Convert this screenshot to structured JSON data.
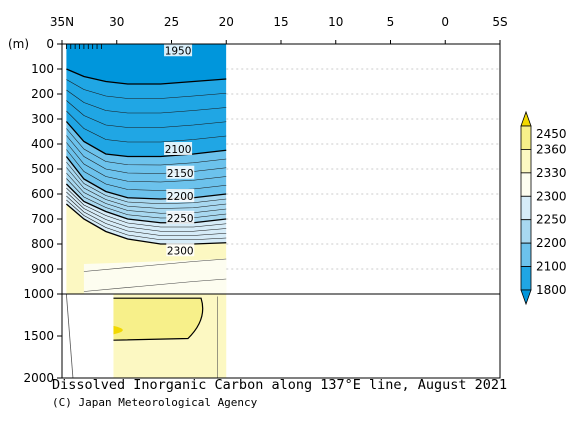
{
  "chart_data": {
    "type": "heatmap",
    "title": "Dissolved Inorganic Carbon along 137°E line, August 2021",
    "credit": "(C) Japan Meteorological Agency",
    "y_unit_label": "(m)",
    "x_ticks": [
      {
        "value": 35,
        "label": "35N"
      },
      {
        "value": 30,
        "label": "30"
      },
      {
        "value": 25,
        "label": "25"
      },
      {
        "value": 20,
        "label": "20"
      },
      {
        "value": 15,
        "label": "15"
      },
      {
        "value": 10,
        "label": "10"
      },
      {
        "value": 5,
        "label": "5"
      },
      {
        "value": 0,
        "label": "0"
      },
      {
        "value": -5,
        "label": "5S"
      }
    ],
    "x_range": [
      35,
      -5
    ],
    "y_ticks_upper": [
      0,
      100,
      200,
      300,
      400,
      500,
      600,
      700,
      800,
      900,
      1000
    ],
    "y_ticks_lower": [
      1500,
      2000
    ],
    "y_range_upper": [
      0,
      1000
    ],
    "y_range_lower": [
      1000,
      2000
    ],
    "colorbar": {
      "labels": [
        "2450",
        "2360",
        "2330",
        "2300",
        "2250",
        "2200",
        "2100",
        "1800"
      ],
      "colors": [
        "#f2d800",
        "#f7f08a",
        "#fcf8c2",
        "#fdfdf0",
        "#d6ecf8",
        "#a8d8f0",
        "#6cc2ec",
        "#20a6e4",
        "#0096dc"
      ]
    },
    "contour_labels": [
      {
        "text": "1950",
        "lat": 24.4,
        "depth": 25
      },
      {
        "text": "2100",
        "lat": 24.4,
        "depth": 420
      },
      {
        "text": "2150",
        "lat": 24.2,
        "depth": 515
      },
      {
        "text": "2200",
        "lat": 24.2,
        "depth": 608
      },
      {
        "text": "2250",
        "lat": 24.2,
        "depth": 695
      },
      {
        "text": "2300",
        "lat": 24.2,
        "depth": 825
      }
    ],
    "section_extent_lat": [
      34.6,
      20
    ],
    "levels": [
      {
        "value": 2300,
        "depth_at_lat": [
          [
            34.6,
            640
          ],
          [
            33,
            700
          ],
          [
            31,
            750
          ],
          [
            29,
            780
          ],
          [
            26,
            800
          ],
          [
            23,
            800
          ],
          [
            20,
            795
          ]
        ]
      },
      {
        "value": 2250,
        "depth_at_lat": [
          [
            34.6,
            560
          ],
          [
            33,
            630
          ],
          [
            31,
            670
          ],
          [
            29,
            700
          ],
          [
            26,
            715
          ],
          [
            23,
            715
          ],
          [
            20,
            700
          ]
        ]
      },
      {
        "value": 2200,
        "depth_at_lat": [
          [
            34.6,
            450
          ],
          [
            33,
            540
          ],
          [
            31,
            590
          ],
          [
            29,
            615
          ],
          [
            26,
            620
          ],
          [
            23,
            615
          ],
          [
            20,
            600
          ]
        ]
      },
      {
        "value": 2100,
        "depth_at_lat": [
          [
            34.6,
            310
          ],
          [
            33,
            390
          ],
          [
            31,
            440
          ],
          [
            29,
            450
          ],
          [
            26,
            450
          ],
          [
            23,
            440
          ],
          [
            20,
            425
          ]
        ]
      },
      {
        "value": 1950,
        "depth_at_lat": [
          [
            34.6,
            100
          ],
          [
            33,
            130
          ],
          [
            31,
            150
          ],
          [
            29,
            160
          ],
          [
            26,
            160
          ],
          [
            23,
            150
          ],
          [
            20,
            140
          ]
        ]
      }
    ],
    "grid": {
      "x": true,
      "y": true,
      "style": "dotted"
    },
    "legend_placement": "right"
  }
}
